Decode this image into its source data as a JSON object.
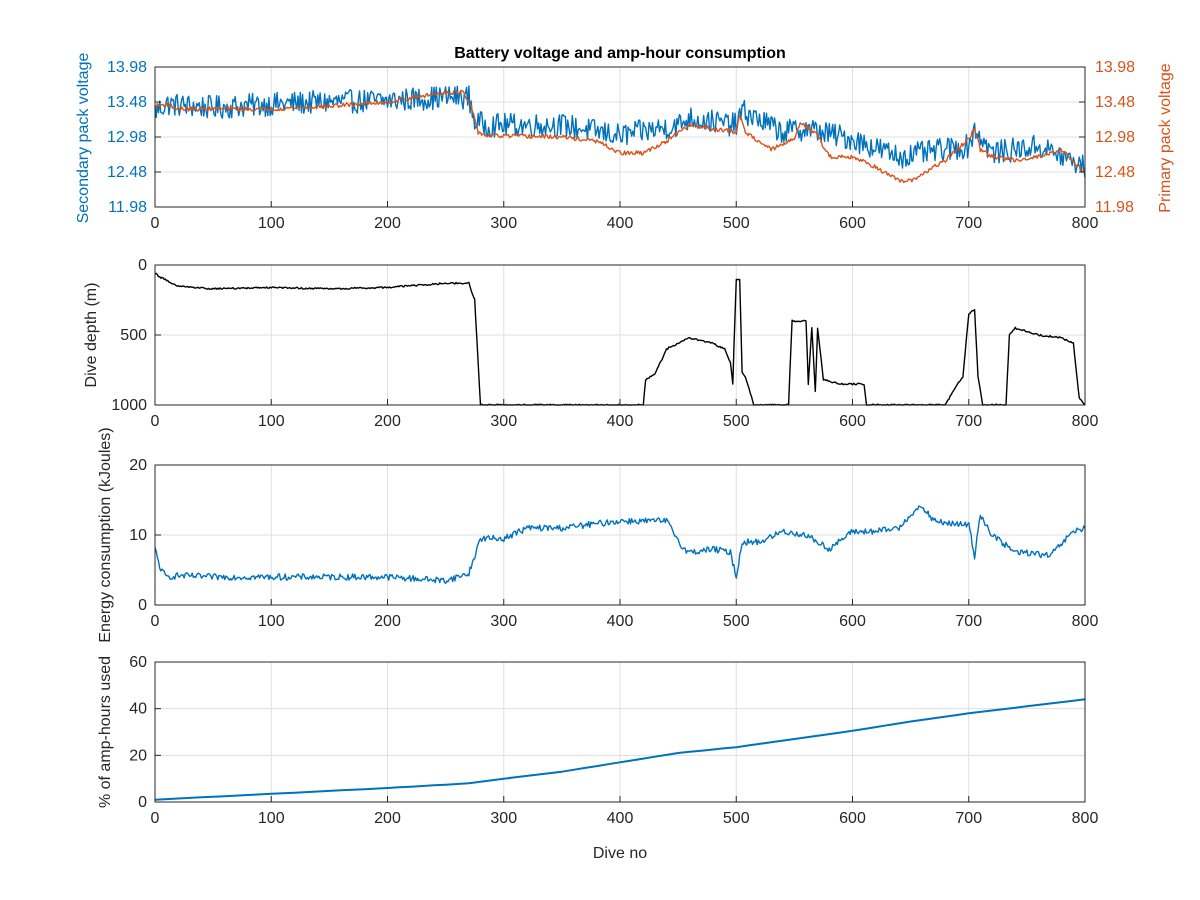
{
  "chart_data": [
    {
      "type": "line",
      "title": "Battery voltage and amp-hour consumption",
      "xlabel": "",
      "ylabel": "Secondary pack voltage",
      "ylabel_right": "Primary pack voltage",
      "xlim": [
        0,
        800
      ],
      "ylim": [
        11.98,
        13.98
      ],
      "ylim_right": [
        11.98,
        13.98
      ],
      "x_ticks": [
        "0",
        "100",
        "200",
        "300",
        "400",
        "500",
        "600",
        "700",
        "800"
      ],
      "y_ticks": [
        "11.98",
        "12.48",
        "12.98",
        "13.48",
        "13.98"
      ],
      "y_ticks_right": [
        "11.98",
        "12.48",
        "12.98",
        "13.48",
        "13.98"
      ],
      "grid": true,
      "series": [
        {
          "axis": "left",
          "color": "#0072bd",
          "noise": 0.17,
          "x": [
            0,
            10,
            50,
            100,
            150,
            200,
            250,
            270,
            275,
            285,
            350,
            400,
            450,
            460,
            500,
            505,
            540,
            560,
            600,
            640,
            660,
            700,
            705,
            720,
            760,
            780,
            800
          ],
          "y": [
            13.35,
            13.45,
            13.4,
            13.45,
            13.48,
            13.5,
            13.55,
            13.55,
            13.2,
            13.15,
            13.15,
            13.0,
            13.15,
            13.25,
            13.15,
            13.35,
            13.05,
            13.1,
            12.95,
            12.7,
            12.75,
            12.85,
            13.1,
            12.75,
            12.85,
            12.7,
            12.55
          ]
        },
        {
          "axis": "right",
          "color": "#d95319",
          "noise": 0.03,
          "x": [
            0,
            10,
            20,
            50,
            100,
            150,
            200,
            250,
            265,
            272,
            278,
            285,
            350,
            380,
            400,
            420,
            440,
            460,
            500,
            503,
            508,
            530,
            550,
            555,
            570,
            580,
            600,
            620,
            640,
            650,
            660,
            680,
            700,
            705,
            710,
            720,
            740,
            760,
            780,
            795,
            800
          ],
          "y": [
            13.42,
            13.45,
            13.38,
            13.38,
            13.38,
            13.42,
            13.48,
            13.62,
            13.62,
            13.4,
            13.05,
            13.0,
            12.98,
            12.92,
            12.75,
            12.75,
            12.92,
            13.15,
            13.05,
            13.3,
            13.05,
            12.8,
            12.95,
            13.2,
            13.0,
            12.7,
            12.7,
            12.55,
            12.35,
            12.35,
            12.45,
            12.65,
            12.95,
            13.1,
            12.8,
            12.7,
            12.65,
            12.7,
            12.8,
            12.55,
            12.45
          ]
        }
      ]
    },
    {
      "type": "line",
      "title": "",
      "xlabel": "",
      "ylabel": "Dive depth (m)",
      "xlim": [
        0,
        800
      ],
      "ylim": [
        0,
        1000
      ],
      "y_reversed": true,
      "x_ticks": [
        "0",
        "100",
        "200",
        "300",
        "400",
        "500",
        "600",
        "700",
        "800"
      ],
      "y_ticks": [
        "0",
        "500",
        "1000"
      ],
      "grid": true,
      "series": [
        {
          "color": "#000000",
          "noise": 6,
          "x": [
            0,
            5,
            20,
            50,
            100,
            150,
            200,
            250,
            270,
            275,
            280,
            300,
            350,
            400,
            420,
            422,
            430,
            440,
            460,
            480,
            490,
            495,
            497,
            500,
            503,
            505,
            508,
            515,
            520,
            545,
            548,
            560,
            562,
            565,
            568,
            570,
            575,
            590,
            610,
            612,
            680,
            690,
            695,
            700,
            705,
            708,
            712,
            732,
            735,
            740,
            760,
            780,
            790,
            795,
            800
          ],
          "y": [
            60,
            90,
            150,
            170,
            160,
            170,
            160,
            130,
            130,
            250,
            1000,
            1000,
            1000,
            1000,
            1000,
            820,
            780,
            600,
            520,
            560,
            600,
            700,
            850,
            100,
            100,
            760,
            800,
            1000,
            1000,
            1000,
            400,
            400,
            850,
            450,
            900,
            450,
            820,
            850,
            850,
            1000,
            1000,
            850,
            800,
            350,
            320,
            800,
            1000,
            1000,
            500,
            450,
            500,
            520,
            560,
            950,
            1000
          ]
        }
      ]
    },
    {
      "type": "line",
      "title": "",
      "xlabel": "",
      "ylabel": "Energy consumption (kJoules)",
      "xlim": [
        0,
        800
      ],
      "ylim": [
        0,
        20
      ],
      "x_ticks": [
        "0",
        "100",
        "200",
        "300",
        "400",
        "500",
        "600",
        "700",
        "800"
      ],
      "y_ticks": [
        "0",
        "10",
        "20"
      ],
      "grid": true,
      "series": [
        {
          "color": "#0072bd",
          "noise": 0.45,
          "x": [
            0,
            5,
            10,
            20,
            50,
            100,
            150,
            200,
            250,
            270,
            280,
            300,
            320,
            350,
            400,
            420,
            440,
            455,
            460,
            480,
            495,
            500,
            505,
            520,
            540,
            560,
            580,
            600,
            620,
            640,
            650,
            660,
            670,
            690,
            700,
            705,
            710,
            720,
            740,
            750,
            770,
            790,
            800
          ],
          "y": [
            8,
            5,
            4,
            4.2,
            4,
            4,
            4,
            4,
            3.5,
            4.5,
            9.5,
            9.5,
            11,
            11,
            12,
            12,
            12,
            8,
            7.5,
            8,
            7.5,
            4,
            9,
            9,
            10.5,
            10,
            8,
            10.5,
            10.5,
            11,
            13,
            14,
            12,
            11.5,
            11.5,
            7,
            13,
            10,
            7.5,
            7.5,
            7,
            10.5,
            11
          ]
        }
      ]
    },
    {
      "type": "line",
      "title": "",
      "xlabel": "Dive no",
      "ylabel": "% of amp-hours used",
      "xlim": [
        0,
        800
      ],
      "ylim": [
        0,
        60
      ],
      "x_ticks": [
        "0",
        "100",
        "200",
        "300",
        "400",
        "500",
        "600",
        "700",
        "800"
      ],
      "y_ticks": [
        "0",
        "20",
        "40",
        "60"
      ],
      "grid": true,
      "series": [
        {
          "color": "#0072bd",
          "noise": 0,
          "x": [
            0,
            100,
            200,
            270,
            300,
            350,
            400,
            450,
            500,
            550,
            600,
            650,
            700,
            750,
            800
          ],
          "y": [
            1,
            3.5,
            6,
            8,
            10,
            13,
            17,
            21,
            23.5,
            27,
            30.5,
            34.5,
            38,
            41,
            44
          ]
        }
      ]
    }
  ]
}
